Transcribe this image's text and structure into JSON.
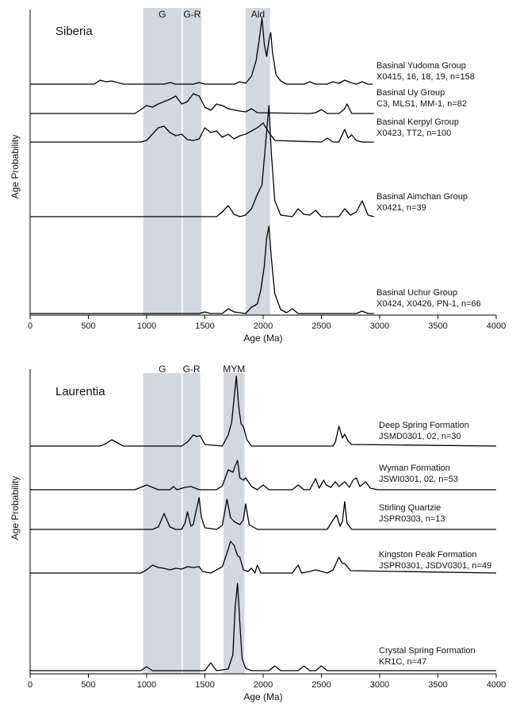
{
  "chart_data": [
    {
      "type": "line",
      "title": "Siberia",
      "xlabel": "Age (Ma)",
      "ylabel": "Age Probability",
      "xlim": [
        0,
        4000
      ],
      "xticks": [
        0,
        500,
        1000,
        1500,
        2000,
        2500,
        3000,
        3500,
        4000
      ],
      "band_color": "#d3d8de",
      "line_color": "#000000",
      "bands": [
        {
          "label": "G",
          "start": 970,
          "end": 1300
        },
        {
          "label": "G-R",
          "start": 1310,
          "end": 1470
        },
        {
          "label": "Ald",
          "start": 1850,
          "end": 2060
        }
      ],
      "series": [
        {
          "name": "Basinal Yudoma Group",
          "samples": "X0415, 16, 18, 19, n=158",
          "x": [
            0,
            550,
            600,
            650,
            700,
            750,
            800,
            1150,
            1200,
            1250,
            1400,
            1450,
            1500,
            1750,
            1800,
            1850,
            1900,
            1940,
            1970,
            1990,
            2010,
            2030,
            2050,
            2065,
            2080,
            2110,
            2150,
            2200,
            2350,
            2400,
            2450,
            2550,
            2600,
            2650,
            2700,
            2750,
            2800,
            2850,
            2900,
            2940
          ],
          "values": [
            0,
            0,
            5,
            3,
            4,
            2,
            0,
            0,
            2,
            0,
            0,
            2,
            0,
            0,
            3,
            1,
            10,
            30,
            60,
            83,
            50,
            35,
            55,
            65,
            40,
            12,
            4,
            0,
            0,
            3,
            0,
            0,
            3,
            1,
            5,
            2,
            0,
            3,
            0,
            0
          ]
        },
        {
          "name": "Basinal Uy Group",
          "samples": "C3, MLS1, MM-1, n=82",
          "x": [
            0,
            900,
            950,
            1000,
            1050,
            1100,
            1150,
            1200,
            1250,
            1300,
            1350,
            1400,
            1450,
            1500,
            1550,
            1600,
            1650,
            1700,
            1800,
            1850,
            1900,
            1950,
            2400,
            2450,
            2500,
            2550,
            2650,
            2700,
            2720,
            2760,
            2950
          ],
          "values": [
            0,
            0,
            5,
            10,
            8,
            12,
            15,
            18,
            22,
            12,
            15,
            25,
            22,
            8,
            4,
            12,
            10,
            6,
            3,
            2,
            6,
            1,
            0,
            1,
            5,
            0,
            0,
            6,
            12,
            0,
            0
          ]
        },
        {
          "name": "Basinal Kerpyl Group",
          "samples": "X0423, TT2, n=100",
          "x": [
            0,
            950,
            1000,
            1050,
            1100,
            1150,
            1200,
            1250,
            1300,
            1350,
            1400,
            1450,
            1500,
            1550,
            1600,
            1650,
            1700,
            1750,
            1800,
            1850,
            1900,
            1950,
            2000,
            2050,
            2100,
            2500,
            2550,
            2600,
            2650,
            2700,
            2730,
            2760,
            2800,
            2850,
            2950
          ],
          "values": [
            0,
            0,
            2,
            10,
            18,
            20,
            12,
            8,
            10,
            3,
            2,
            4,
            18,
            12,
            14,
            6,
            10,
            4,
            8,
            10,
            14,
            18,
            24,
            12,
            2,
            0,
            5,
            0,
            0,
            16,
            5,
            9,
            2,
            0,
            0
          ]
        },
        {
          "name": "Basinal Aimchan Group",
          "samples": "X0421, n=39",
          "x": [
            0,
            1600,
            1650,
            1700,
            1750,
            1800,
            1850,
            1900,
            1950,
            1990,
            2020,
            2050,
            2070,
            2100,
            2150,
            2250,
            2300,
            2350,
            2400,
            2450,
            2500,
            2650,
            2700,
            2750,
            2800,
            2850,
            2900,
            2950
          ],
          "values": [
            0,
            0,
            6,
            14,
            3,
            0,
            2,
            10,
            28,
            40,
            90,
            140,
            80,
            20,
            2,
            0,
            10,
            3,
            2,
            8,
            0,
            0,
            10,
            2,
            6,
            20,
            2,
            0
          ]
        },
        {
          "name": "Basinal Uchur Group",
          "samples": "X0424, X0426, PN-1, n=66",
          "x": [
            0,
            1450,
            1500,
            1550,
            1650,
            1700,
            1750,
            1850,
            1900,
            1950,
            1980,
            2010,
            2030,
            2050,
            2070,
            2100,
            2150,
            2200,
            2250,
            2300,
            2800,
            2850,
            2900,
            2950
          ],
          "values": [
            0,
            0,
            2,
            0,
            0,
            6,
            2,
            0,
            8,
            12,
            30,
            60,
            95,
            110,
            70,
            25,
            5,
            1,
            6,
            0,
            0,
            3,
            0,
            0
          ]
        }
      ]
    },
    {
      "type": "line",
      "title": "Laurentia",
      "xlabel": "Age (Ma)",
      "ylabel": "Age Probability",
      "xlim": [
        0,
        4000
      ],
      "xticks": [
        0,
        500,
        1000,
        1500,
        2000,
        2500,
        3000,
        3500,
        4000
      ],
      "band_color": "#d3d8de",
      "line_color": "#000000",
      "bands": [
        {
          "label": "G",
          "start": 970,
          "end": 1300
        },
        {
          "label": "G-R",
          "start": 1310,
          "end": 1460
        },
        {
          "label": "MYM",
          "start": 1660,
          "end": 1840
        }
      ],
      "series": [
        {
          "name": "Deep Spring Formation",
          "samples": "JSMD0301, 02, n=30",
          "x": [
            0,
            600,
            650,
            700,
            750,
            800,
            1300,
            1350,
            1400,
            1430,
            1460,
            1500,
            1650,
            1700,
            1730,
            1750,
            1770,
            1790,
            1810,
            1830,
            1860,
            1900,
            2600,
            2620,
            2650,
            2680,
            2700,
            2730,
            2760,
            4000
          ],
          "values": [
            0,
            0,
            3,
            8,
            4,
            0,
            0,
            5,
            14,
            12,
            13,
            2,
            0,
            14,
            30,
            60,
            88,
            50,
            28,
            25,
            8,
            0,
            0,
            5,
            25,
            10,
            15,
            6,
            2,
            0
          ]
        },
        {
          "name": "Wyman Formation",
          "samples": "JSWI0301, 02, n=53",
          "x": [
            0,
            900,
            950,
            1000,
            1050,
            1100,
            1200,
            1230,
            1260,
            1330,
            1380,
            1450,
            1600,
            1650,
            1700,
            1740,
            1760,
            1780,
            1800,
            1830,
            1850,
            1900,
            1950,
            2000,
            2050,
            2250,
            2300,
            2350,
            2400,
            2450,
            2480,
            2520,
            2540,
            2580,
            2620,
            2650,
            2700,
            2740,
            2770,
            2800,
            2830,
            2880,
            2920,
            2980,
            4000
          ],
          "values": [
            0,
            0,
            3,
            6,
            3,
            0,
            0,
            4,
            0,
            3,
            4,
            0,
            0,
            5,
            25,
            22,
            30,
            37,
            15,
            12,
            15,
            4,
            0,
            6,
            0,
            0,
            6,
            0,
            0,
            14,
            2,
            12,
            6,
            3,
            10,
            4,
            10,
            3,
            12,
            15,
            4,
            10,
            2,
            0,
            0
          ]
        },
        {
          "name": "Stirling Quartzie",
          "samples": "JSPR0303, n=13",
          "x": [
            0,
            1050,
            1100,
            1150,
            1200,
            1250,
            1300,
            1330,
            1350,
            1380,
            1400,
            1420,
            1450,
            1470,
            1500,
            1600,
            1650,
            1690,
            1720,
            1750,
            1800,
            1830,
            1850,
            1880,
            1950,
            2550,
            2600,
            2630,
            2660,
            2680,
            2700,
            2720,
            2760,
            4000
          ],
          "values": [
            0,
            0,
            3,
            20,
            3,
            0,
            0,
            8,
            22,
            4,
            6,
            20,
            40,
            15,
            2,
            0,
            5,
            38,
            15,
            10,
            6,
            12,
            32,
            6,
            0,
            0,
            12,
            18,
            4,
            10,
            35,
            8,
            0,
            0
          ]
        },
        {
          "name": "Kingston Peak Formation",
          "samples": "JSPR0301, JSDV0301, n=49",
          "x": [
            0,
            950,
            1000,
            1050,
            1100,
            1150,
            1200,
            1250,
            1300,
            1350,
            1400,
            1450,
            1480,
            1550,
            1650,
            1700,
            1720,
            1750,
            1780,
            1800,
            1830,
            1870,
            1900,
            1930,
            1950,
            1980,
            2250,
            2300,
            2330,
            2400,
            2450,
            2550,
            2600,
            2650,
            2680,
            2700,
            2750,
            4000
          ],
          "values": [
            0,
            0,
            4,
            10,
            7,
            6,
            4,
            6,
            5,
            8,
            7,
            8,
            2,
            0,
            8,
            30,
            40,
            35,
            22,
            20,
            4,
            2,
            6,
            0,
            10,
            0,
            0,
            10,
            0,
            2,
            4,
            0,
            4,
            20,
            12,
            12,
            3,
            0
          ]
        },
        {
          "name": "Crystal Spring Formation",
          "samples": "KR1C, n=47",
          "x": [
            0,
            950,
            1000,
            1050,
            1500,
            1550,
            1600,
            1700,
            1740,
            1760,
            1780,
            1800,
            1820,
            1850,
            1900,
            2050,
            2100,
            2150,
            2300,
            2350,
            2400,
            2450,
            2500,
            2550,
            4000
          ],
          "values": [
            0,
            0,
            5,
            0,
            0,
            10,
            0,
            2,
            20,
            80,
            110,
            60,
            15,
            3,
            0,
            0,
            6,
            0,
            0,
            6,
            0,
            0,
            6,
            0,
            0
          ]
        }
      ]
    }
  ]
}
